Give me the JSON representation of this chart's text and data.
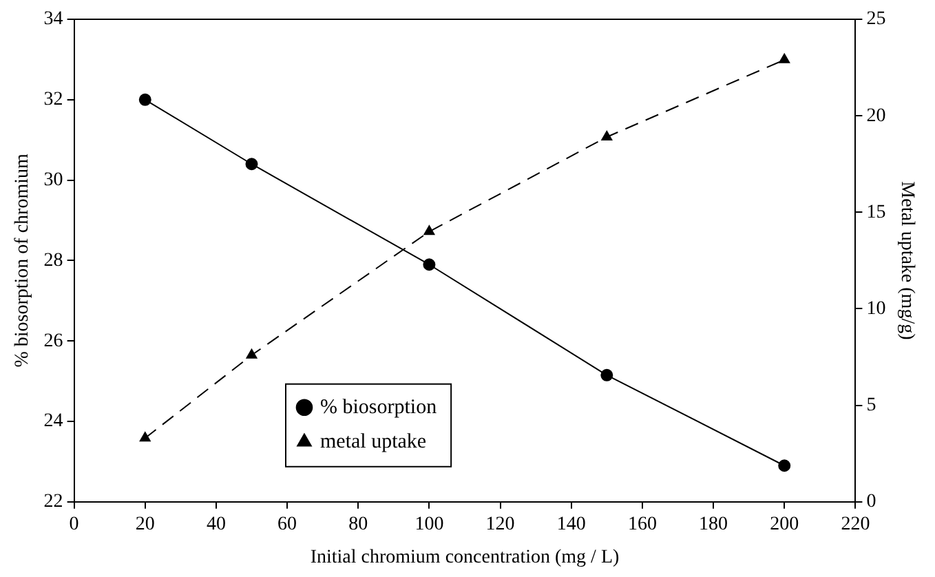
{
  "chart_data": {
    "type": "line",
    "xlabel": "Initial chromium concentration (mg / L)",
    "ylabel": "% biosorption of chromium",
    "y2label": "Metal uptake (mg/g)",
    "x": [
      20,
      50,
      100,
      150,
      200
    ],
    "series": [
      {
        "name": "% biosorption",
        "color": "#000000",
        "values": [
          32.0,
          30.4,
          27.9,
          25.15,
          22.9
        ],
        "marker": "circle",
        "line_style": "solid"
      },
      {
        "name": "metal uptake",
        "color": "#000000",
        "values": [
          3.3,
          7.6,
          14.0,
          18.9,
          22.9
        ],
        "axis": "y2",
        "marker": "triangle",
        "line_style": "dashed"
      }
    ],
    "xlim": [
      0,
      220
    ],
    "xticks": [
      0,
      20,
      40,
      60,
      80,
      100,
      120,
      140,
      160,
      180,
      200,
      220
    ],
    "ylim": [
      22,
      34
    ],
    "yticks": [
      22,
      24,
      26,
      28,
      30,
      32,
      34
    ],
    "y2lim": [
      0,
      25
    ],
    "y2ticks": [
      0,
      5,
      10,
      15,
      20,
      25
    ],
    "grid": false,
    "legend": "bottom"
  }
}
